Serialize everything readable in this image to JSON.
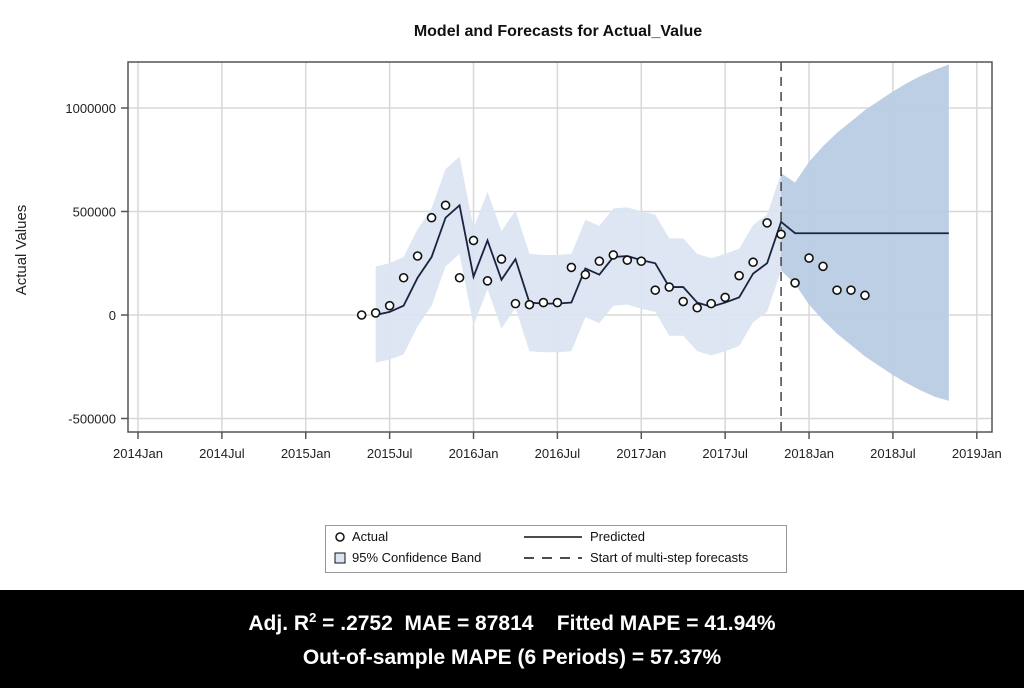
{
  "chart_data": {
    "type": "line",
    "title": "Model and Forecasts for Actual_Value",
    "ylabel": "Actual Values",
    "xlabel": "",
    "ylim": [
      -600000,
      1250000
    ],
    "xlim": [
      "2013-12",
      "2019-02"
    ],
    "yticks": [
      -500000,
      0,
      500000,
      1000000
    ],
    "ytick_labels": [
      "-500000",
      "0",
      "500000",
      "1000000"
    ],
    "xticks": [
      "2014-01",
      "2014-07",
      "2015-01",
      "2015-07",
      "2016-01",
      "2016-07",
      "2017-01",
      "2017-07",
      "2018-01",
      "2018-07",
      "2019-01"
    ],
    "xtick_labels": [
      "2014Jan",
      "2014Jul",
      "2015Jan",
      "2015Jul",
      "2016Jan",
      "2016Jul",
      "2017Jan",
      "2017Jul",
      "2018Jan",
      "2018Jul",
      "2019Jan"
    ],
    "grid": true,
    "forecast_start": "2017-11",
    "actual": {
      "name": "Actual",
      "start": "2015-05",
      "values": [
        0,
        10000,
        45000,
        180000,
        285000,
        470000,
        530000,
        180000,
        360000,
        165000,
        270000,
        55000,
        50000,
        60000,
        60000,
        230000,
        195000,
        260000,
        290000,
        265000,
        260000,
        120000,
        135000,
        65000,
        35000,
        55000,
        85000,
        190000,
        255000,
        445000,
        390000,
        155000,
        275000,
        235000,
        120000,
        120000,
        95000
      ]
    },
    "predicted": {
      "name": "Predicted",
      "start": "2015-06",
      "values": [
        0,
        15000,
        45000,
        180000,
        280000,
        470000,
        530000,
        185000,
        360000,
        170000,
        270000,
        60000,
        55000,
        55000,
        60000,
        225000,
        195000,
        280000,
        285000,
        265000,
        250000,
        135000,
        135000,
        60000,
        40000,
        60000,
        85000,
        200000,
        250000,
        450000,
        395000,
        395000,
        395000,
        395000,
        395000,
        395000,
        395000,
        395000,
        395000,
        395000,
        395000,
        395000
      ]
    },
    "confidence_band": {
      "name": "95% Confidence Band",
      "start": "2015-06",
      "lower": [
        -230000,
        -215000,
        -190000,
        -55000,
        45000,
        235000,
        295000,
        -50000,
        125000,
        -65000,
        35000,
        -175000,
        -180000,
        -180000,
        -175000,
        -10000,
        -40000,
        45000,
        50000,
        30000,
        15000,
        -100000,
        -100000,
        -175000,
        -195000,
        -175000,
        -150000,
        -35000,
        15000,
        215000,
        150000,
        50000,
        -25000,
        -90000,
        -145000,
        -200000,
        -245000,
        -290000,
        -330000,
        -365000,
        -395000,
        -415000
      ],
      "upper": [
        235000,
        250000,
        280000,
        415000,
        515000,
        705000,
        765000,
        420000,
        595000,
        405000,
        505000,
        295000,
        290000,
        290000,
        295000,
        460000,
        430000,
        515000,
        520000,
        500000,
        485000,
        370000,
        370000,
        295000,
        275000,
        295000,
        320000,
        435000,
        485000,
        685000,
        640000,
        740000,
        815000,
        880000,
        935000,
        990000,
        1035000,
        1080000,
        1120000,
        1155000,
        1185000,
        1210000
      ]
    },
    "legend": {
      "placement": "bottom",
      "entries": [
        "Actual",
        "Predicted",
        "95% Confidence Band",
        "Start of multi-step forecasts"
      ]
    },
    "colors": {
      "band_fit": "#dbe5f1",
      "band_forecast": "#b8cce4",
      "line": "#1a2340",
      "grid": "#d8d8d8"
    }
  },
  "stats": {
    "line1_prefix": "Adj. R",
    "line1_sup": "2",
    "line1_rest": " = .2752  MAE = 87814    Fitted MAPE = 41.94%",
    "line2": "Out-of-sample MAPE (6 Periods) = 57.37%"
  }
}
